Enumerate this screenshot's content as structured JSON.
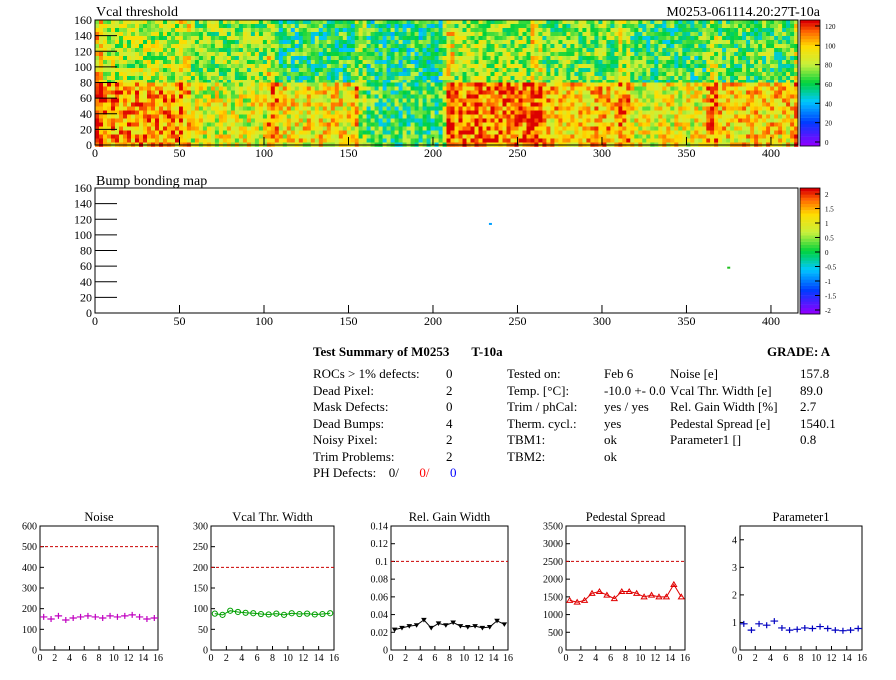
{
  "header": {
    "map1_title": "Vcal threshold",
    "module_id": "M0253-061114.20:27T-10a",
    "map2_title": "Bump bonding map"
  },
  "maps": {
    "x_ticks": [
      0,
      50,
      100,
      150,
      200,
      250,
      300,
      350,
      400
    ],
    "y_ticks": [
      0,
      20,
      40,
      60,
      80,
      100,
      120,
      140,
      160
    ],
    "xlim": [
      0,
      416
    ],
    "ylim": [
      0,
      160
    ],
    "threshold_scale_labels": [
      "120",
      "100",
      "80",
      "60",
      "40",
      "20",
      "0"
    ],
    "bump_scale_labels": [
      "2",
      "1.5",
      "1",
      "0.5",
      "0",
      "-0.5",
      "-1",
      "-1.5",
      "-2"
    ],
    "threshold_roc_levels": {
      "top": [
        0.65,
        0.6,
        0.5,
        0.48,
        0.62,
        0.58,
        0.52,
        0.55
      ],
      "bottom": [
        0.85,
        0.7,
        0.75,
        0.52,
        0.88,
        0.8,
        0.72,
        0.78
      ]
    },
    "bump_marks": [
      {
        "x": 234,
        "y": 114,
        "color": "#00a0ff"
      },
      {
        "x": 375,
        "y": 58,
        "color": "#20c020"
      }
    ]
  },
  "summary": {
    "title": "Test Summary of M0253",
    "tag": "T-10a",
    "grade_label": "GRADE:  A",
    "defects": [
      {
        "label": "ROCs > 1% defects:",
        "value": "0"
      },
      {
        "label": "Dead Pixel:",
        "value": "2"
      },
      {
        "label": "Mask Defects:",
        "value": "0"
      },
      {
        "label": "Dead Bumps:",
        "value": "4"
      },
      {
        "label": "Noisy Pixel:",
        "value": "2"
      },
      {
        "label": "Trim Problems:",
        "value": "2"
      }
    ],
    "ph_label": "PH Defects:",
    "ph_values": [
      "0/",
      "0/",
      "0"
    ],
    "conditions": [
      {
        "label": "Tested on:",
        "value": "Feb 6"
      },
      {
        "label": "Temp. [°C]:",
        "value": "-10.0 +- 0.0"
      },
      {
        "label": "Trim / phCal:",
        "value": "yes / yes"
      },
      {
        "label": "Therm. cycl.:",
        "value": "yes"
      },
      {
        "label": "TBM1:",
        "value": "ok"
      },
      {
        "label": "TBM2:",
        "value": "ok"
      }
    ],
    "results": [
      {
        "label": "Noise [e]",
        "value": "157.8"
      },
      {
        "label": "Vcal Thr. Width [e]",
        "value": "89.0"
      },
      {
        "label": "Rel. Gain Width [%]",
        "value": "2.7"
      },
      {
        "label": "Pedestal Spread [e]",
        "value": "1540.1"
      },
      {
        "label": "Parameter1 []",
        "value": "0.8"
      }
    ]
  },
  "chart_data": [
    {
      "type": "scatter",
      "title": "Noise",
      "xlim": [
        0,
        16
      ],
      "ylim": [
        0,
        600
      ],
      "x_ticks": [
        "0",
        "2",
        "4",
        "6",
        "8",
        "10",
        "12",
        "14",
        "16"
      ],
      "y_ticks": [
        "0",
        "100",
        "200",
        "300",
        "400",
        "500",
        "600"
      ],
      "threshold": 500,
      "color": "#c000c0",
      "marker": "cross",
      "x": [
        0,
        1,
        2,
        3,
        4,
        5,
        6,
        7,
        8,
        9,
        10,
        11,
        12,
        13,
        14,
        15
      ],
      "values": [
        160,
        150,
        165,
        145,
        155,
        160,
        165,
        160,
        155,
        165,
        160,
        165,
        170,
        160,
        150,
        155
      ]
    },
    {
      "type": "scatter",
      "title": "Vcal Thr. Width",
      "xlim": [
        0,
        16
      ],
      "ylim": [
        0,
        300
      ],
      "x_ticks": [
        "0",
        "2",
        "4",
        "6",
        "8",
        "10",
        "12",
        "14",
        "16"
      ],
      "y_ticks": [
        "0",
        "50",
        "100",
        "150",
        "200",
        "250",
        "300"
      ],
      "threshold": 200,
      "color": "#00a000",
      "marker": "circle",
      "x": [
        0,
        1,
        2,
        3,
        4,
        5,
        6,
        7,
        8,
        9,
        10,
        11,
        12,
        13,
        14,
        15
      ],
      "values": [
        88,
        85,
        95,
        92,
        90,
        89,
        87,
        86,
        88,
        85,
        89,
        87,
        88,
        86,
        87,
        89
      ]
    },
    {
      "type": "scatter",
      "title": "Rel. Gain Width",
      "xlim": [
        0,
        16
      ],
      "ylim": [
        0,
        0.14
      ],
      "x_ticks": [
        "0",
        "2",
        "4",
        "6",
        "8",
        "10",
        "12",
        "14",
        "16"
      ],
      "y_ticks": [
        "0",
        "0.02",
        "0.04",
        "0.06",
        "0.08",
        "0.1",
        "0.12",
        "0.14"
      ],
      "threshold": 0.1,
      "color": "#000000",
      "marker": "triangle-down",
      "x": [
        0,
        1,
        2,
        3,
        4,
        5,
        6,
        7,
        8,
        9,
        10,
        11,
        12,
        13,
        14,
        15
      ],
      "values": [
        0.023,
        0.025,
        0.027,
        0.028,
        0.034,
        0.025,
        0.03,
        0.028,
        0.031,
        0.027,
        0.026,
        0.027,
        0.025,
        0.026,
        0.033,
        0.029
      ]
    },
    {
      "type": "scatter",
      "title": "Pedestal Spread",
      "xlim": [
        0,
        16
      ],
      "ylim": [
        0,
        3500
      ],
      "x_ticks": [
        "0",
        "2",
        "4",
        "6",
        "8",
        "10",
        "12",
        "14",
        "16"
      ],
      "y_ticks": [
        "0",
        "500",
        "1000",
        "1500",
        "2000",
        "2500",
        "3000",
        "3500"
      ],
      "threshold": 2500,
      "color": "#e00000",
      "marker": "triangle-up",
      "x": [
        0,
        1,
        2,
        3,
        4,
        5,
        6,
        7,
        8,
        9,
        10,
        11,
        12,
        13,
        14,
        15
      ],
      "values": [
        1400,
        1350,
        1400,
        1600,
        1650,
        1550,
        1450,
        1650,
        1650,
        1600,
        1500,
        1550,
        1500,
        1500,
        1850,
        1500
      ]
    },
    {
      "type": "scatter",
      "title": "Parameter1",
      "xlim": [
        0,
        16
      ],
      "ylim": [
        0,
        4.5
      ],
      "x_ticks": [
        "0",
        "2",
        "4",
        "6",
        "8",
        "10",
        "12",
        "14",
        "16"
      ],
      "y_ticks": [
        "0",
        "1",
        "2",
        "3",
        "4"
      ],
      "threshold": null,
      "color": "#0000c0",
      "marker": "cross",
      "x": [
        0,
        1,
        2,
        3,
        4,
        5,
        6,
        7,
        8,
        9,
        10,
        11,
        12,
        13,
        14,
        15
      ],
      "values": [
        0.95,
        0.72,
        0.95,
        0.9,
        1.05,
        0.8,
        0.72,
        0.75,
        0.8,
        0.78,
        0.85,
        0.78,
        0.72,
        0.7,
        0.72,
        0.78
      ]
    }
  ]
}
